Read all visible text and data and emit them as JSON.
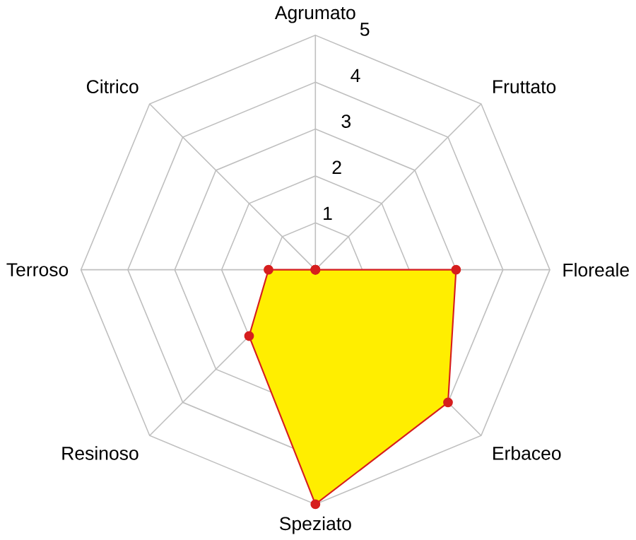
{
  "chart_data": {
    "type": "radar",
    "categories": [
      "Agrumato",
      "Fruttato",
      "Floreale",
      "Erbaceo",
      "Speziato",
      "Resinoso",
      "Terroso",
      "Citrico"
    ],
    "series": [
      {
        "color": "#ffee00",
        "values": [
          0,
          0,
          3,
          4,
          5,
          2,
          1,
          0
        ]
      }
    ],
    "ylim": [
      0,
      5
    ],
    "yticks": [
      1,
      2,
      3,
      4,
      5
    ],
    "grid": true,
    "marker": "circle"
  }
}
